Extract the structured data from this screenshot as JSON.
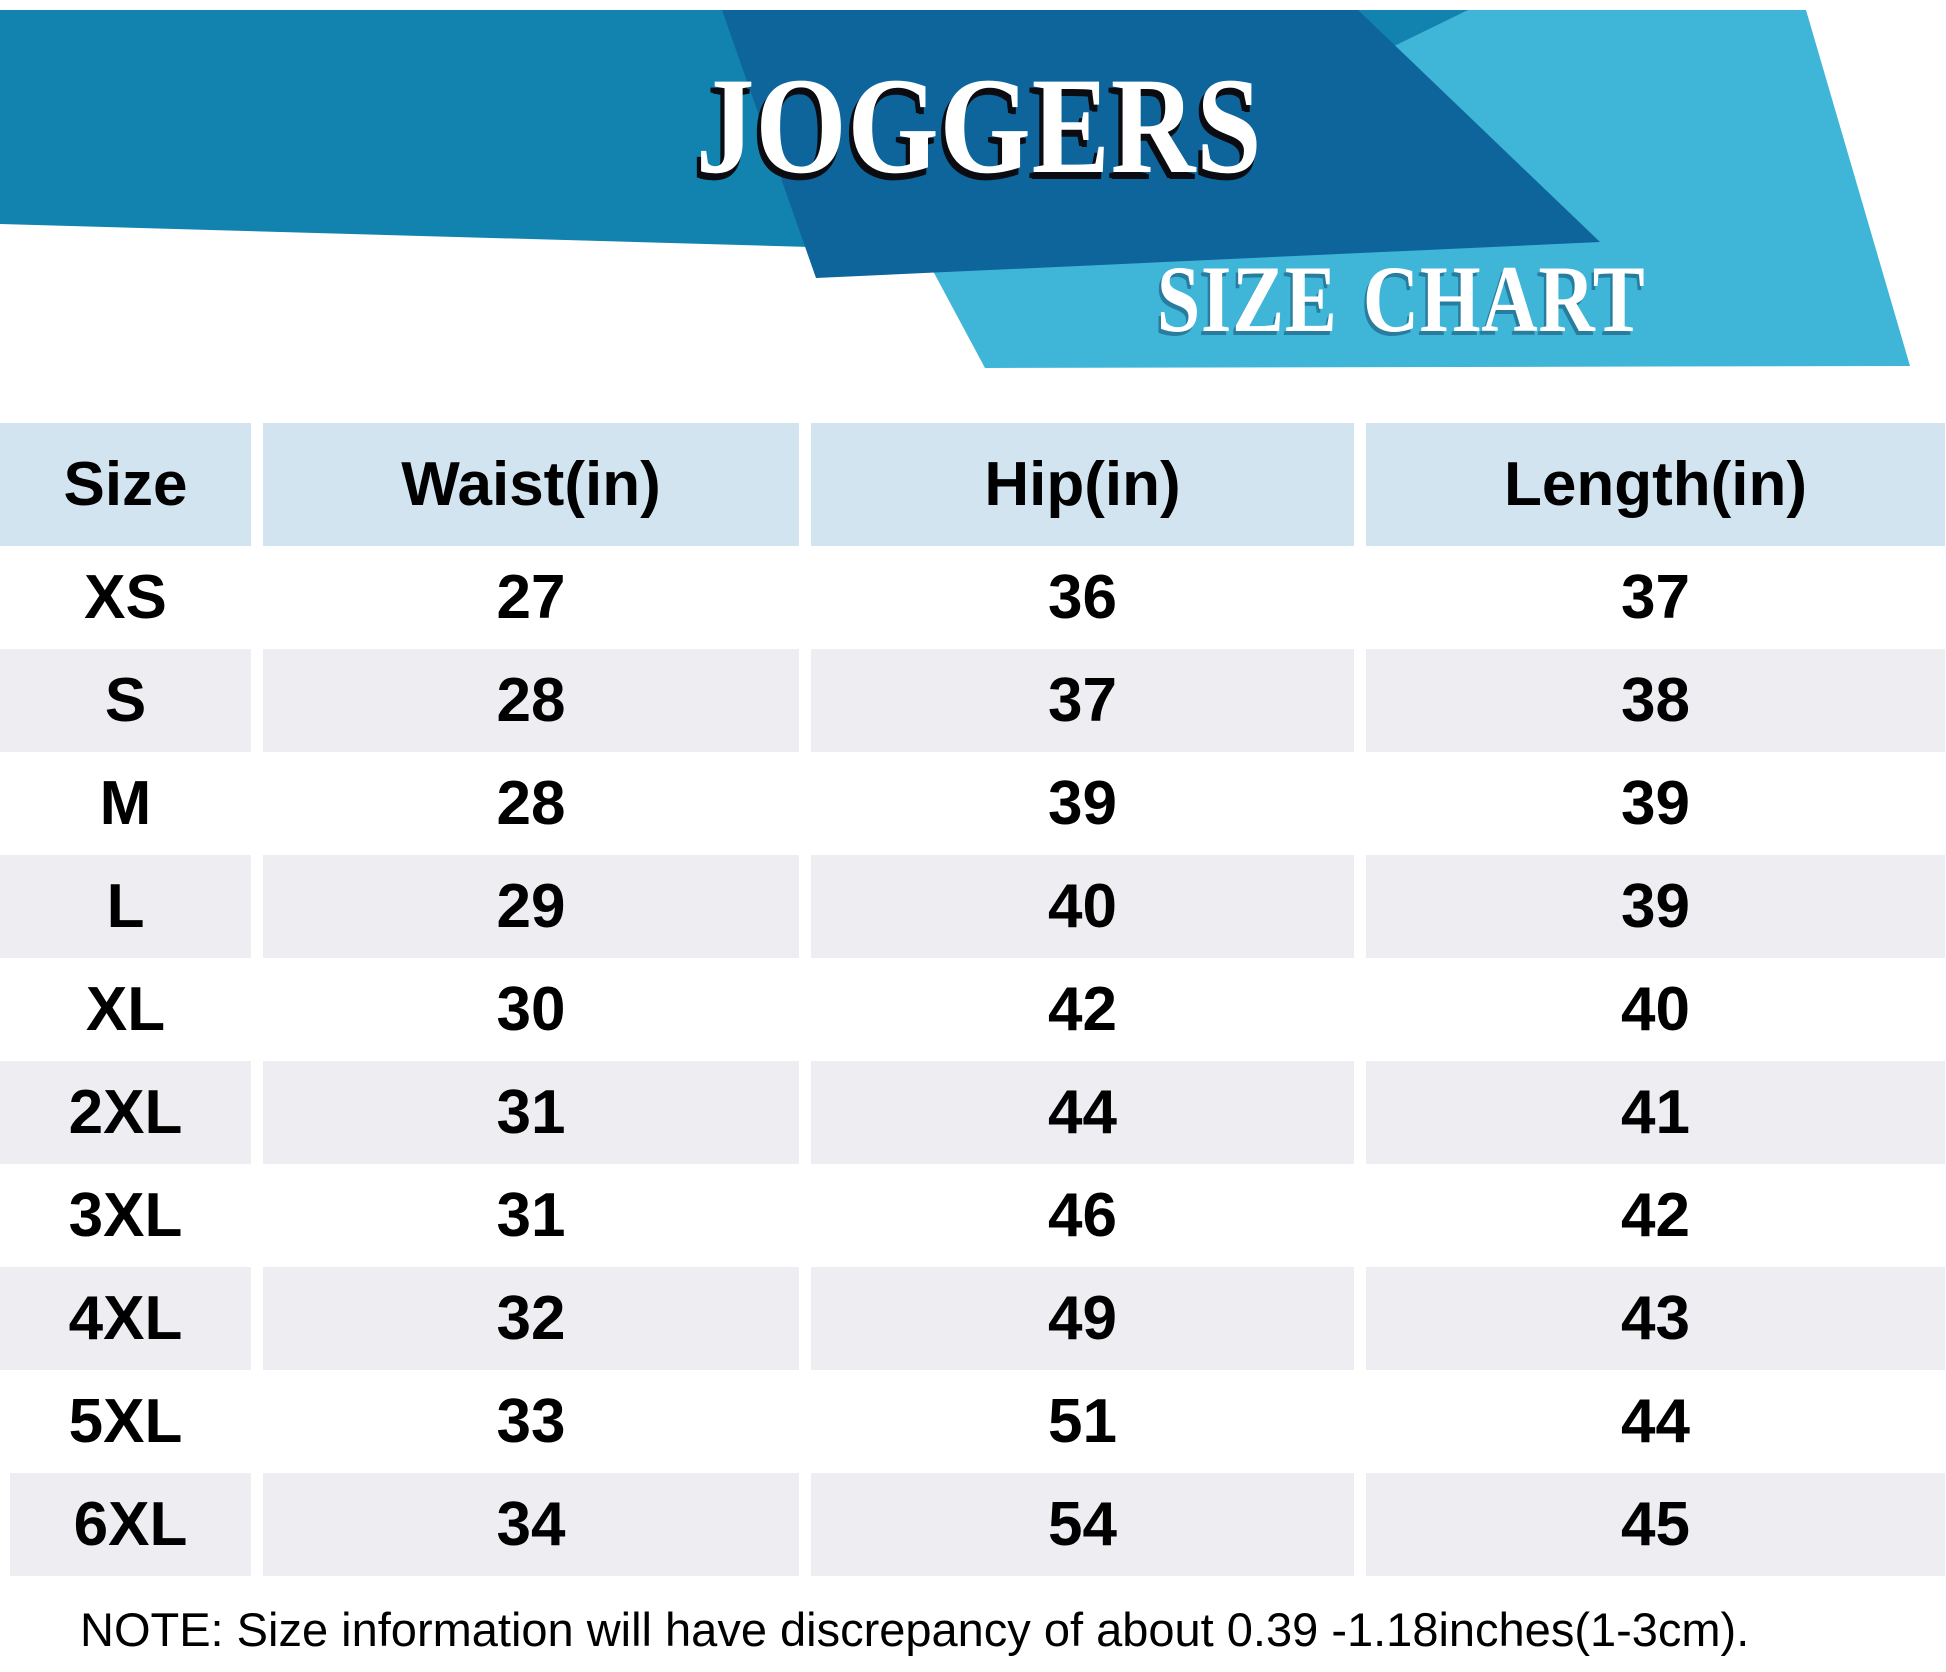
{
  "banner": {
    "title": "JOGGERS",
    "subtitle": "SIZE CHART"
  },
  "colors": {
    "band_mid": "#1183AE",
    "band_dark": "#0D659C",
    "band_light": "#3FB5D8",
    "header_cell": "#D2E4F0",
    "row_alt": "#EDEDF2",
    "text": "#000000"
  },
  "table": {
    "columns": [
      "Size",
      "Waist(in)",
      "Hip(in)",
      "Length(in)"
    ],
    "rows": [
      [
        "XS",
        "27",
        "36",
        "37"
      ],
      [
        "S",
        "28",
        "37",
        "38"
      ],
      [
        "M",
        "28",
        "39",
        "39"
      ],
      [
        "L",
        "29",
        "40",
        "39"
      ],
      [
        "XL",
        "30",
        "42",
        "40"
      ],
      [
        "2XL",
        "31",
        "44",
        "41"
      ],
      [
        "3XL",
        "31",
        "46",
        "42"
      ],
      [
        "4XL",
        "32",
        "49",
        "43"
      ],
      [
        "5XL",
        "33",
        "51",
        "44"
      ],
      [
        "6XL",
        "34",
        "54",
        "45"
      ]
    ]
  },
  "note": "NOTE: Size information will have discrepancy of about 0.39 -1.18inches(1-3cm)."
}
